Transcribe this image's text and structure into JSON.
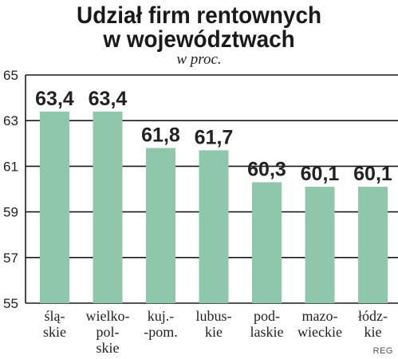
{
  "chart_data": {
    "type": "bar",
    "title": "Udział firm rentownych w województwach",
    "title_lines": [
      "Udział firm rentownych",
      "w województwach"
    ],
    "subtitle": "w proc.",
    "credit": "REG",
    "categories": [
      [
        "ślą-",
        "skie"
      ],
      [
        "wielko-",
        "pol-",
        "skie"
      ],
      [
        "kuj.-",
        "-pom."
      ],
      [
        "lubus-",
        "kie"
      ],
      [
        "pod-",
        "laskie"
      ],
      [
        "mazo-",
        "wieckie"
      ],
      [
        "łódz-",
        "kie"
      ]
    ],
    "values": [
      63.4,
      63.4,
      61.8,
      61.7,
      60.3,
      60.1,
      60.1
    ],
    "value_labels": [
      "63,4",
      "63,4",
      "61,8",
      "61,7",
      "60,3",
      "60,1",
      "60,1"
    ],
    "ylim": [
      55,
      65
    ],
    "yticks": [
      55,
      57,
      59,
      61,
      63,
      65
    ],
    "grid": true,
    "colors": {
      "bar": "#8fc7aa",
      "grid": "#1a1a1a",
      "axis": "#1a1a1a"
    }
  }
}
